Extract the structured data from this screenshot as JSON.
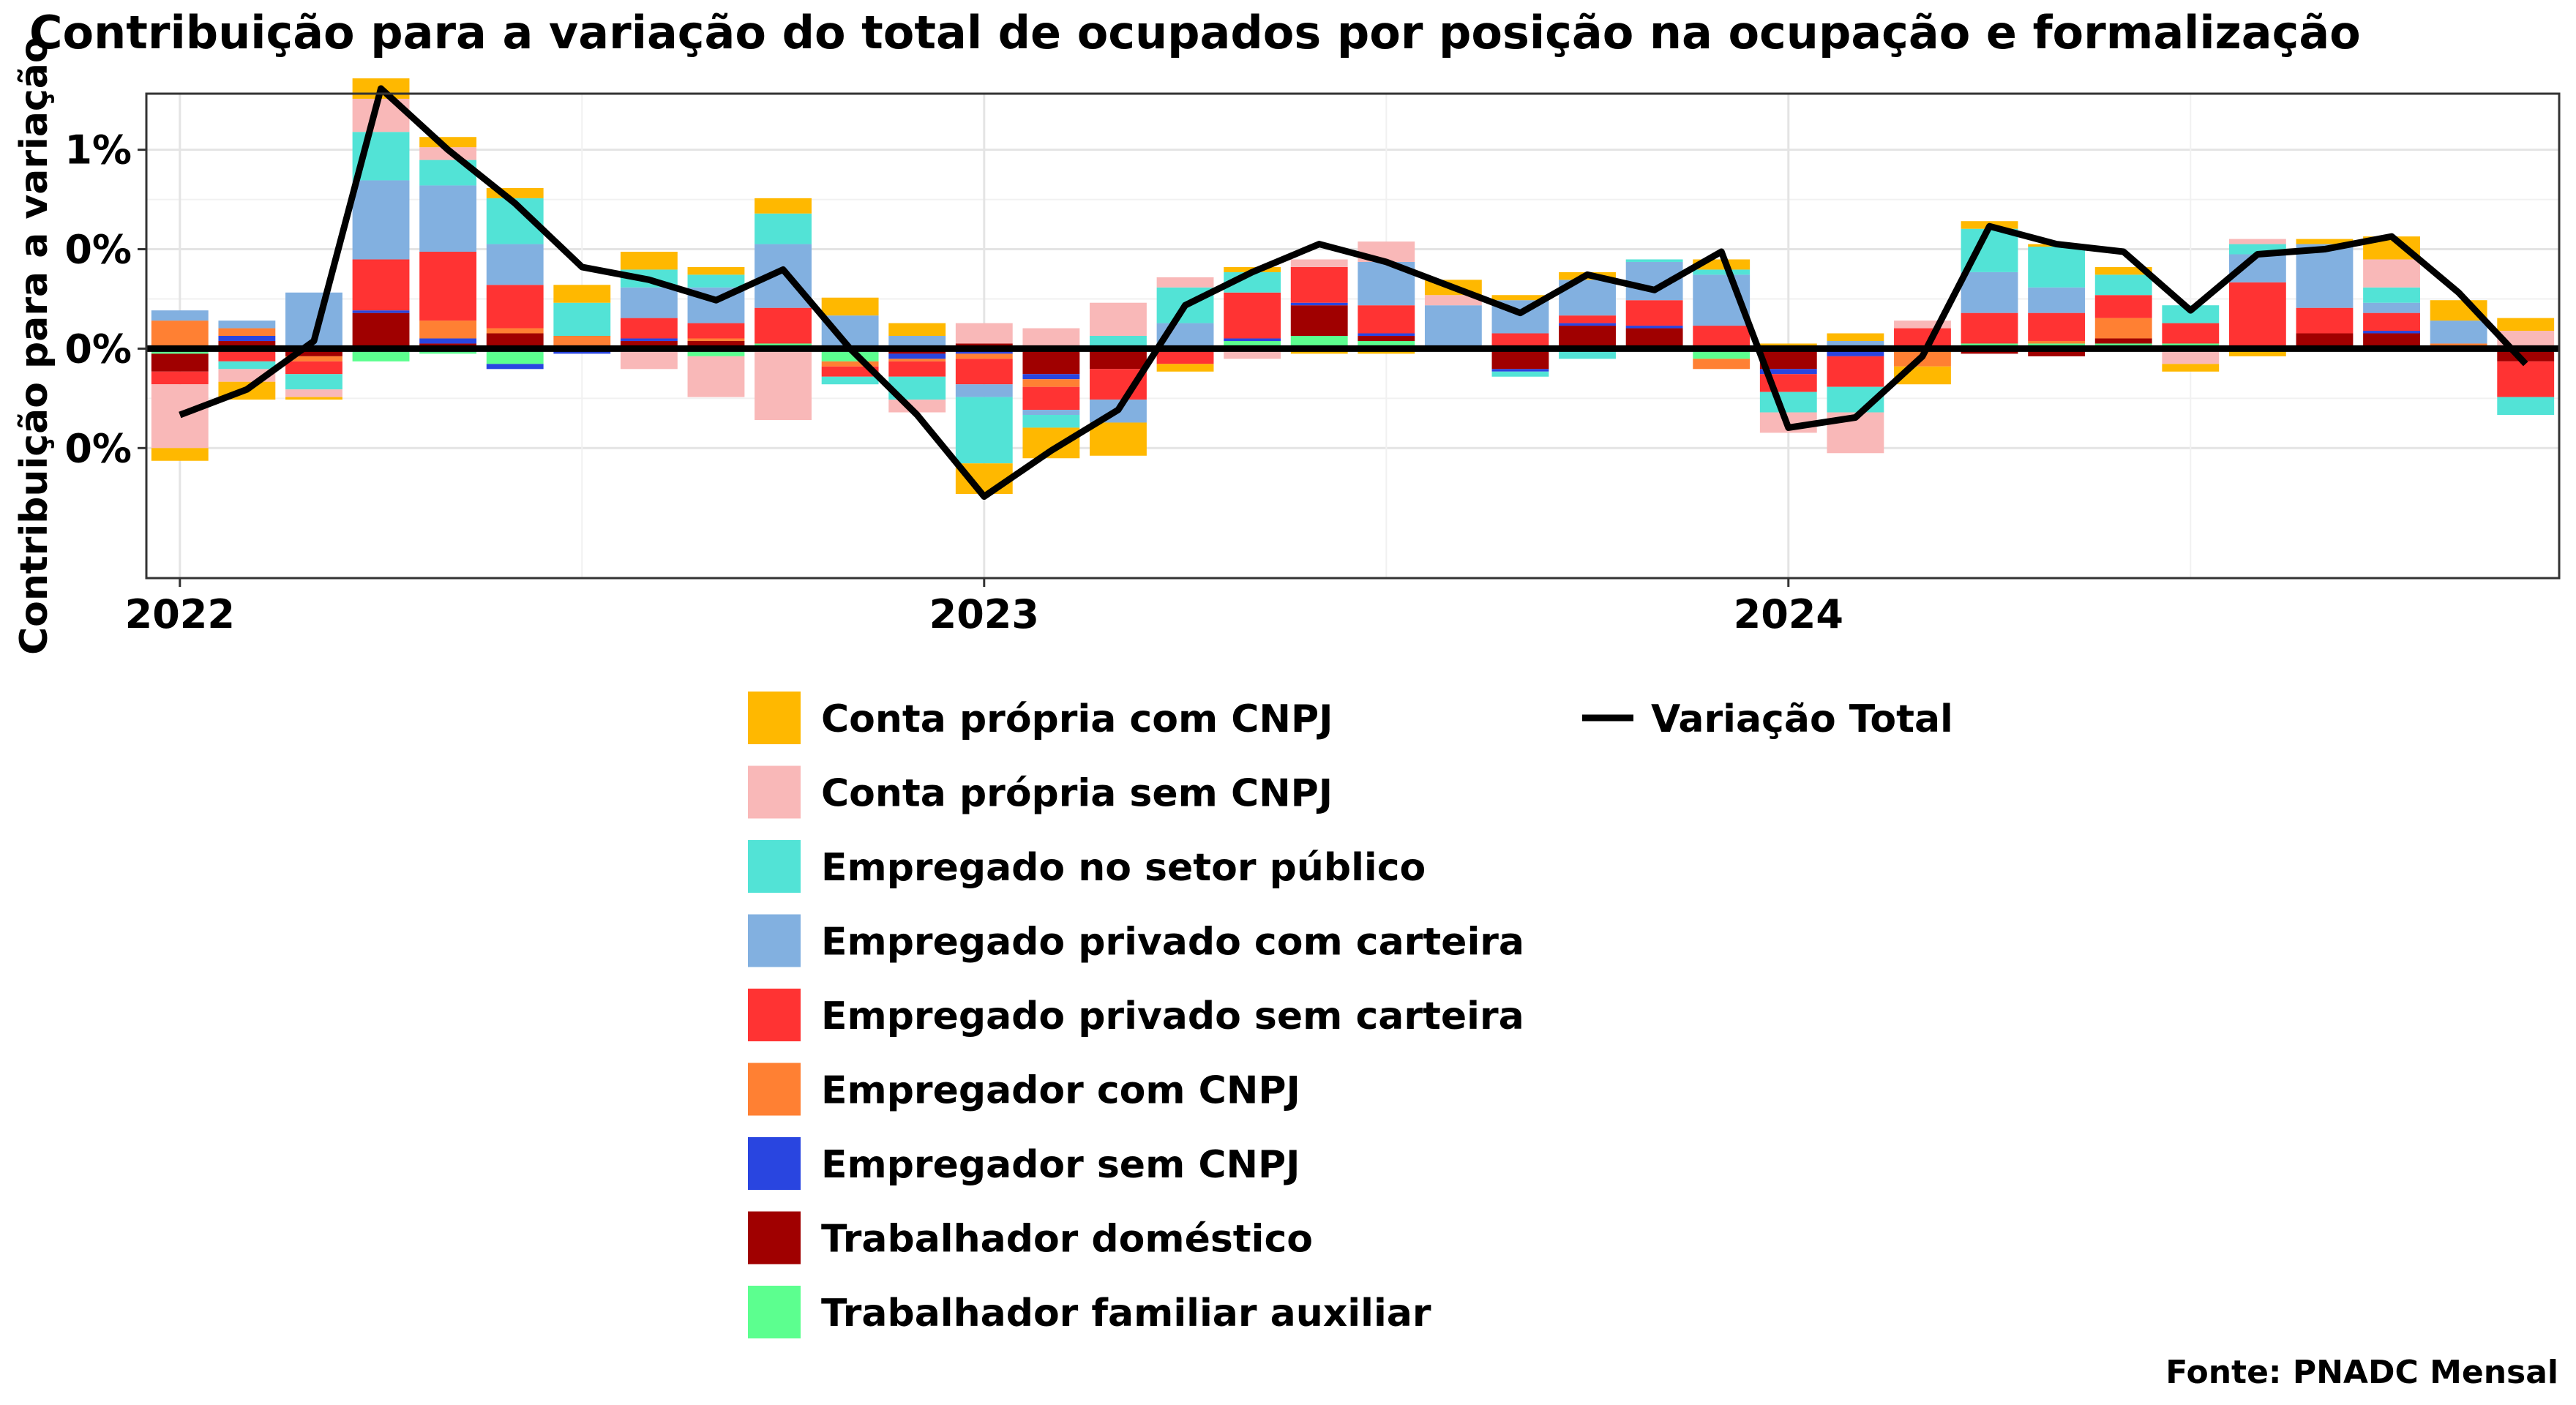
{
  "chart_data": {
    "type": "bar",
    "title": "Contribuição para a variação do total de ocupados por posição na ocupação e formalização",
    "ylabel": "Contribuição para a variação",
    "xlabel": "",
    "source": "Fonte: PNADC Mensal",
    "ylim": [
      -0.9,
      1.0
    ],
    "y_ticks": [
      {
        "value": 0.78,
        "label": "1%"
      },
      {
        "value": 0.39,
        "label": "0%"
      },
      {
        "value": 0.0,
        "label": "0%"
      },
      {
        "value": -0.39,
        "label": "0%"
      }
    ],
    "x_ticks": [
      {
        "index": 0,
        "label": "2022"
      },
      {
        "index": 12,
        "label": "2023"
      },
      {
        "index": 24,
        "label": "2024"
      }
    ],
    "grid": true,
    "legend_position": "bottom",
    "colors": {
      "Conta própria com CNPJ": "#FFB800",
      "Conta própria sem CNPJ": "#F9B8B8",
      "Empregado no setor público": "#52E3D6",
      "Empregado privado com carteira": "#82B0E0",
      "Empregado privado sem carteira": "#FF3333",
      "Empregador com CNPJ": "#FF8033",
      "Empregador sem CNPJ": "#2945E0",
      "Trabalhador doméstico": "#A00000",
      "Trabalhador familiar auxiliar": "#5CFF8F",
      "Variação Total": "#000000"
    },
    "categories": [
      "2022-01",
      "2022-02",
      "2022-03",
      "2022-04",
      "2022-05",
      "2022-06",
      "2022-07",
      "2022-08",
      "2022-09",
      "2022-10",
      "2022-11",
      "2022-12",
      "2023-01",
      "2023-02",
      "2023-03",
      "2023-04",
      "2023-05",
      "2023-06",
      "2023-07",
      "2023-08",
      "2023-09",
      "2023-10",
      "2023-11",
      "2023-12",
      "2024-01",
      "2024-02",
      "2024-03",
      "2024-04",
      "2024-05",
      "2024-06",
      "2024-07",
      "2024-08",
      "2024-09",
      "2024-10",
      "2024-11",
      "2024-12"
    ],
    "series": [
      {
        "name": "Trabalhador familiar auxiliar",
        "values": [
          -0.02,
          0.0,
          0.0,
          -0.05,
          -0.02,
          -0.06,
          0.0,
          0.0,
          -0.03,
          0.02,
          -0.05,
          0.0,
          0.0,
          0.0,
          0.0,
          0.0,
          0.03,
          0.05,
          0.03,
          0.01,
          0.01,
          0.0,
          0.0,
          -0.04,
          0.0,
          0.0,
          0.0,
          0.02,
          0.02,
          0.02,
          0.02,
          0.0,
          0.0,
          0.0,
          0.0,
          0.0
        ]
      },
      {
        "name": "Trabalhador doméstico",
        "values": [
          -0.07,
          0.03,
          -0.03,
          0.14,
          0.02,
          0.06,
          0.0,
          0.03,
          0.03,
          0.0,
          0.0,
          -0.02,
          0.02,
          -0.1,
          -0.08,
          0.0,
          0.0,
          0.12,
          0.02,
          0.0,
          -0.08,
          0.09,
          0.08,
          0.0,
          -0.08,
          0.0,
          0.0,
          -0.02,
          -0.03,
          0.02,
          0.0,
          0.0,
          0.06,
          0.06,
          0.0,
          -0.05
        ]
      },
      {
        "name": "Empregador sem CNPJ",
        "values": [
          0.0,
          0.02,
          0.0,
          0.01,
          0.02,
          -0.02,
          -0.02,
          0.01,
          0.0,
          0.0,
          0.0,
          -0.02,
          -0.02,
          -0.02,
          0.0,
          0.0,
          0.01,
          0.01,
          0.01,
          0.0,
          -0.01,
          0.01,
          0.01,
          0.0,
          -0.02,
          -0.03,
          0.0,
          0.0,
          0.0,
          0.0,
          0.0,
          0.0,
          0.0,
          0.01,
          0.0,
          0.0
        ]
      },
      {
        "name": "Empregador com CNPJ",
        "values": [
          0.11,
          0.03,
          -0.02,
          0.0,
          0.07,
          0.02,
          0.05,
          0.0,
          0.01,
          0.0,
          -0.02,
          -0.01,
          -0.02,
          -0.03,
          0.0,
          0.0,
          0.0,
          0.0,
          0.0,
          0.0,
          0.0,
          0.0,
          0.0,
          -0.04,
          0.0,
          0.0,
          -0.07,
          0.0,
          0.01,
          0.08,
          0.0,
          0.0,
          0.0,
          0.0,
          0.02,
          0.0
        ]
      },
      {
        "name": "Empregado privado sem carteira",
        "values": [
          -0.05,
          -0.05,
          -0.05,
          0.2,
          0.27,
          0.17,
          0.0,
          0.08,
          0.06,
          0.14,
          -0.04,
          -0.06,
          -0.1,
          -0.09,
          -0.12,
          -0.06,
          0.18,
          0.14,
          0.11,
          0.0,
          0.05,
          0.03,
          0.1,
          0.09,
          -0.07,
          -0.12,
          0.08,
          0.12,
          0.11,
          0.09,
          0.08,
          0.26,
          0.1,
          0.07,
          0.0,
          -0.14
        ]
      },
      {
        "name": "Empregado privado com carteira",
        "values": [
          0.04,
          0.03,
          0.22,
          0.31,
          0.26,
          0.16,
          0.0,
          0.12,
          0.14,
          0.25,
          0.13,
          0.05,
          -0.05,
          -0.02,
          -0.09,
          0.1,
          0.0,
          0.0,
          0.17,
          0.16,
          0.13,
          0.14,
          0.15,
          0.2,
          0.0,
          0.03,
          0.0,
          0.16,
          0.1,
          0.0,
          0.0,
          0.11,
          0.25,
          0.04,
          0.09,
          0.0
        ]
      },
      {
        "name": "Empregado no setor público",
        "values": [
          0.0,
          -0.03,
          -0.06,
          0.19,
          0.1,
          0.18,
          0.13,
          0.07,
          0.05,
          0.12,
          -0.03,
          -0.09,
          -0.26,
          -0.05,
          0.05,
          0.14,
          0.08,
          0.0,
          0.0,
          0.0,
          -0.02,
          -0.04,
          0.01,
          0.02,
          -0.08,
          -0.1,
          0.0,
          0.17,
          0.16,
          0.08,
          0.07,
          0.04,
          0.0,
          0.06,
          0.0,
          -0.07
        ]
      },
      {
        "name": "Conta própria sem CNPJ",
        "values": [
          -0.25,
          -0.05,
          -0.03,
          0.13,
          0.05,
          0.0,
          0.0,
          -0.08,
          -0.16,
          -0.28,
          0.0,
          -0.05,
          0.08,
          0.08,
          0.13,
          0.04,
          -0.04,
          0.03,
          0.08,
          0.04,
          0.0,
          0.0,
          0.0,
          0.0,
          -0.08,
          -0.16,
          0.03,
          0.0,
          0.0,
          0.0,
          -0.06,
          0.02,
          0.0,
          0.11,
          0.0,
          0.07
        ]
      },
      {
        "name": "Conta própria com CNPJ",
        "values": [
          -0.05,
          -0.07,
          -0.01,
          0.08,
          0.04,
          0.04,
          0.07,
          0.07,
          0.03,
          0.06,
          0.07,
          0.05,
          -0.12,
          -0.12,
          -0.13,
          -0.03,
          0.02,
          -0.02,
          -0.02,
          0.06,
          0.02,
          0.03,
          0.0,
          0.04,
          0.02,
          0.03,
          -0.07,
          0.03,
          0.01,
          0.03,
          -0.03,
          -0.03,
          0.02,
          0.09,
          0.08,
          0.05
        ]
      }
    ],
    "line_series": {
      "name": "Variação Total",
      "values": [
        -0.26,
        -0.16,
        0.03,
        1.02,
        0.78,
        0.57,
        0.32,
        0.27,
        0.19,
        0.31,
        0.0,
        -0.26,
        -0.58,
        -0.4,
        -0.24,
        0.17,
        0.3,
        0.41,
        0.34,
        0.24,
        0.14,
        0.29,
        0.23,
        0.38,
        -0.31,
        -0.27,
        -0.03,
        0.48,
        0.41,
        0.38,
        0.15,
        0.37,
        0.39,
        0.44,
        0.22,
        -0.06
      ]
    }
  }
}
